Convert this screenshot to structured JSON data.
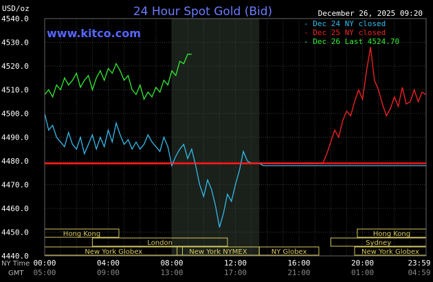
{
  "chart_data": {
    "type": "line",
    "title": "24 Hour Spot Gold (Bid)",
    "source": "www.kitco.com",
    "date_label": "December 26, 2025 09:20",
    "y_unit": "USD/oz",
    "ylim": [
      4440,
      4540
    ],
    "y_ticks": [
      "4540.0",
      "4530.0",
      "4520.0",
      "4510.0",
      "4500.0",
      "4490.0",
      "4480.0",
      "4470.0",
      "4460.0",
      "4450.0",
      "4440.0"
    ],
    "x_ny_label": "NY Time",
    "x_gmt_label": "GMT",
    "x_ticks_ny": [
      "00:00",
      "04:00",
      "08:00",
      "12:00",
      "16:00",
      "20:00",
      "23:59"
    ],
    "x_ticks_gmt": [
      "05:00",
      "09:00",
      "13:00",
      "17:00",
      "21:00",
      "01:00",
      "04:59"
    ],
    "legend": [
      {
        "label": "Dec 24 NY closed",
        "color": "#33bbee"
      },
      {
        "label": "Dec 25 NY closed",
        "color": "#ee2222"
      },
      {
        "label": "Dec 26 Last 4524.70",
        "color": "#33ee33"
      }
    ],
    "reference_line": {
      "value": 4479,
      "color": "#dd1111"
    },
    "series": [
      {
        "name": "Dec 24 NY closed",
        "color": "#33bbee",
        "x": [
          0,
          0.25,
          0.5,
          0.75,
          1,
          1.25,
          1.5,
          1.75,
          2,
          2.25,
          2.5,
          2.75,
          3,
          3.25,
          3.5,
          3.75,
          4,
          4.25,
          4.5,
          4.75,
          5,
          5.25,
          5.5,
          5.75,
          6,
          6.25,
          6.5,
          6.75,
          7,
          7.25,
          7.5,
          7.75,
          8,
          8.25,
          8.5,
          8.75,
          9,
          9.25,
          9.5,
          9.75,
          10,
          10.25,
          10.5,
          10.75,
          11,
          11.25,
          11.5,
          11.75,
          12,
          12.25,
          12.5,
          12.75,
          13,
          13.25,
          13.5,
          13.75,
          14,
          14.5,
          15,
          15.5,
          16,
          16.5,
          17,
          17.5,
          18,
          18.5,
          19,
          19.5,
          20,
          20.5,
          21,
          21.5,
          22,
          22.5,
          23,
          23.5,
          23.98
        ],
        "y": [
          4500,
          4493,
          4495,
          4490,
          4488,
          4486,
          4492,
          4487,
          4485,
          4490,
          4483,
          4487,
          4491,
          4485,
          4490,
          4486,
          4493,
          4488,
          4496,
          4491,
          4487,
          4489,
          4485,
          4488,
          4485,
          4487,
          4491,
          4488,
          4486,
          4484,
          4490,
          4486,
          4478,
          4482,
          4485,
          4487,
          4481,
          4485,
          4478,
          4470,
          4465,
          4472,
          4468,
          4461,
          4452,
          4458,
          4466,
          4463,
          4470,
          4476,
          4484,
          4480,
          4479,
          4479,
          4479,
          4478,
          4478,
          4478,
          4478,
          4478,
          4478,
          4478,
          4478,
          4478,
          4478,
          4478,
          4478,
          4478,
          4478,
          4478,
          4478,
          4478,
          4478,
          4478,
          4478,
          4478,
          4478
        ]
      },
      {
        "name": "Dec 25 NY closed",
        "color": "#ee2222",
        "x": [
          0,
          1,
          2,
          3,
          4,
          5,
          6,
          7,
          8,
          9,
          10,
          11,
          12,
          13,
          14,
          15,
          16,
          17,
          17.5,
          17.75,
          18,
          18.25,
          18.5,
          18.75,
          19,
          19.25,
          19.5,
          19.75,
          20,
          20.25,
          20.5,
          20.75,
          21,
          21.25,
          21.5,
          21.75,
          22,
          22.25,
          22.5,
          22.75,
          23,
          23.25,
          23.5,
          23.75,
          23.98
        ],
        "y": [
          4479,
          4479,
          4479,
          4479,
          4479,
          4479,
          4479,
          4479,
          4479,
          4479,
          4479,
          4479,
          4479,
          4479,
          4479,
          4479,
          4479,
          4479,
          4479,
          4483,
          4488,
          4493,
          4490,
          4497,
          4501,
          4499,
          4505,
          4510,
          4506,
          4518,
          4528,
          4514,
          4510,
          4504,
          4499,
          4502,
          4507,
          4503,
          4511,
          4504,
          4505,
          4510,
          4505,
          4509,
          4508
        ]
      },
      {
        "name": "Dec 26 Last 4524.70",
        "color": "#33ee33",
        "x": [
          0,
          0.25,
          0.5,
          0.75,
          1,
          1.25,
          1.5,
          1.75,
          2,
          2.25,
          2.5,
          2.75,
          3,
          3.25,
          3.5,
          3.75,
          4,
          4.25,
          4.5,
          4.75,
          5,
          5.25,
          5.5,
          5.75,
          6,
          6.25,
          6.5,
          6.75,
          7,
          7.25,
          7.5,
          7.75,
          8,
          8.25,
          8.5,
          8.75,
          9,
          9.25
        ],
        "y": [
          4508,
          4510,
          4507,
          4512,
          4510,
          4515,
          4512,
          4514,
          4517,
          4511,
          4514,
          4516,
          4510,
          4515,
          4518,
          4514,
          4519,
          4517,
          4521,
          4518,
          4514,
          4516,
          4510,
          4508,
          4512,
          4506,
          4509,
          4507,
          4511,
          4509,
          4514,
          4512,
          4518,
          4516,
          4522,
          4521,
          4525,
          4525
        ]
      }
    ],
    "sessions": [
      {
        "label": "Hong Kong",
        "start": 0,
        "end": 4.67,
        "row": 0
      },
      {
        "label": "Hong Kong",
        "start": 19.67,
        "end": 24,
        "row": 0
      },
      {
        "label": "London",
        "start": 3,
        "end": 11.5,
        "row": 1
      },
      {
        "label": "Sydney",
        "start": 18,
        "end": 24,
        "row": 1
      },
      {
        "label": "New York Globex",
        "start": 0,
        "end": 8.67,
        "row": 2
      },
      {
        "label": "New York NYMEX",
        "start": 8.33,
        "end": 13.5,
        "row": 2
      },
      {
        "label": "NY Globex",
        "start": 13.5,
        "end": 17.25,
        "row": 2
      },
      {
        "label": "New York Globex",
        "start": 19.5,
        "end": 24,
        "row": 2
      }
    ],
    "highlight_range": [
      8,
      13.5
    ],
    "grid": true
  }
}
